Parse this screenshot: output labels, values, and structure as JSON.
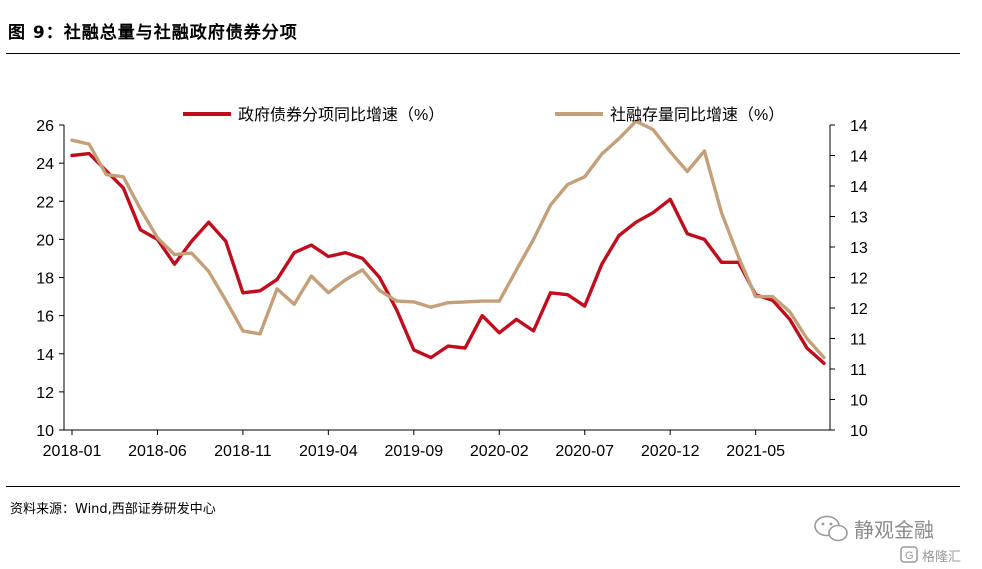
{
  "figure": {
    "title": "图 9：社融总量与社融政府债券分项",
    "source": "资料来源：Wind,西部证券研发中心"
  },
  "watermark": {
    "line1": "静观金融",
    "line2": "格隆汇"
  },
  "chart_data": {
    "type": "line",
    "x_tick_labels": [
      "2018-01",
      "2018-06",
      "2018-11",
      "2019-04",
      "2019-09",
      "2020-02",
      "2020-07",
      "2020-12",
      "2021-05"
    ],
    "x_tick_indices": [
      0,
      5,
      10,
      15,
      20,
      25,
      30,
      35,
      40
    ],
    "n_points": 45,
    "y_left": {
      "ylim": [
        10,
        26
      ],
      "ticks": [
        "10",
        "12",
        "14",
        "16",
        "18",
        "20",
        "22",
        "24",
        "26"
      ]
    },
    "y_right": {
      "ylim": [
        10,
        14
      ],
      "ticks": [
        "10",
        "10",
        "11",
        "11",
        "12",
        "12",
        "13",
        "13",
        "14",
        "14",
        "14"
      ]
    },
    "legend_position": "top",
    "series": [
      {
        "name": "政府债券分项同比增速（%）",
        "axis": "left",
        "color": "#c00d1e",
        "values": [
          24.4,
          24.5,
          23.6,
          22.7,
          20.5,
          20.0,
          18.7,
          19.9,
          20.9,
          19.9,
          17.2,
          17.3,
          17.9,
          19.3,
          19.7,
          19.1,
          19.3,
          19.0,
          18.0,
          16.3,
          14.2,
          13.8,
          14.4,
          14.3,
          16.0,
          15.1,
          15.8,
          15.2,
          17.2,
          17.1,
          16.5,
          18.7,
          20.2,
          20.9,
          21.4,
          22.1,
          20.3,
          20.0,
          18.8,
          18.8,
          17.1,
          16.8,
          15.8,
          14.3,
          13.5
        ]
      },
      {
        "name": "社融存量同比增速（%）",
        "axis": "right",
        "color": "#c4a07a",
        "values": [
          13.8,
          13.75,
          13.35,
          13.32,
          12.9,
          12.52,
          12.3,
          12.32,
          12.08,
          11.7,
          11.3,
          11.26,
          11.85,
          11.65,
          12.02,
          11.8,
          11.97,
          12.1,
          11.83,
          11.69,
          11.68,
          11.61,
          11.67,
          11.68,
          11.69,
          11.69,
          12.1,
          12.5,
          12.95,
          13.22,
          13.32,
          13.62,
          13.82,
          14.05,
          13.94,
          13.65,
          13.39,
          13.66,
          12.85,
          12.27,
          11.75,
          11.75,
          11.55,
          11.2,
          10.95
        ]
      }
    ]
  }
}
